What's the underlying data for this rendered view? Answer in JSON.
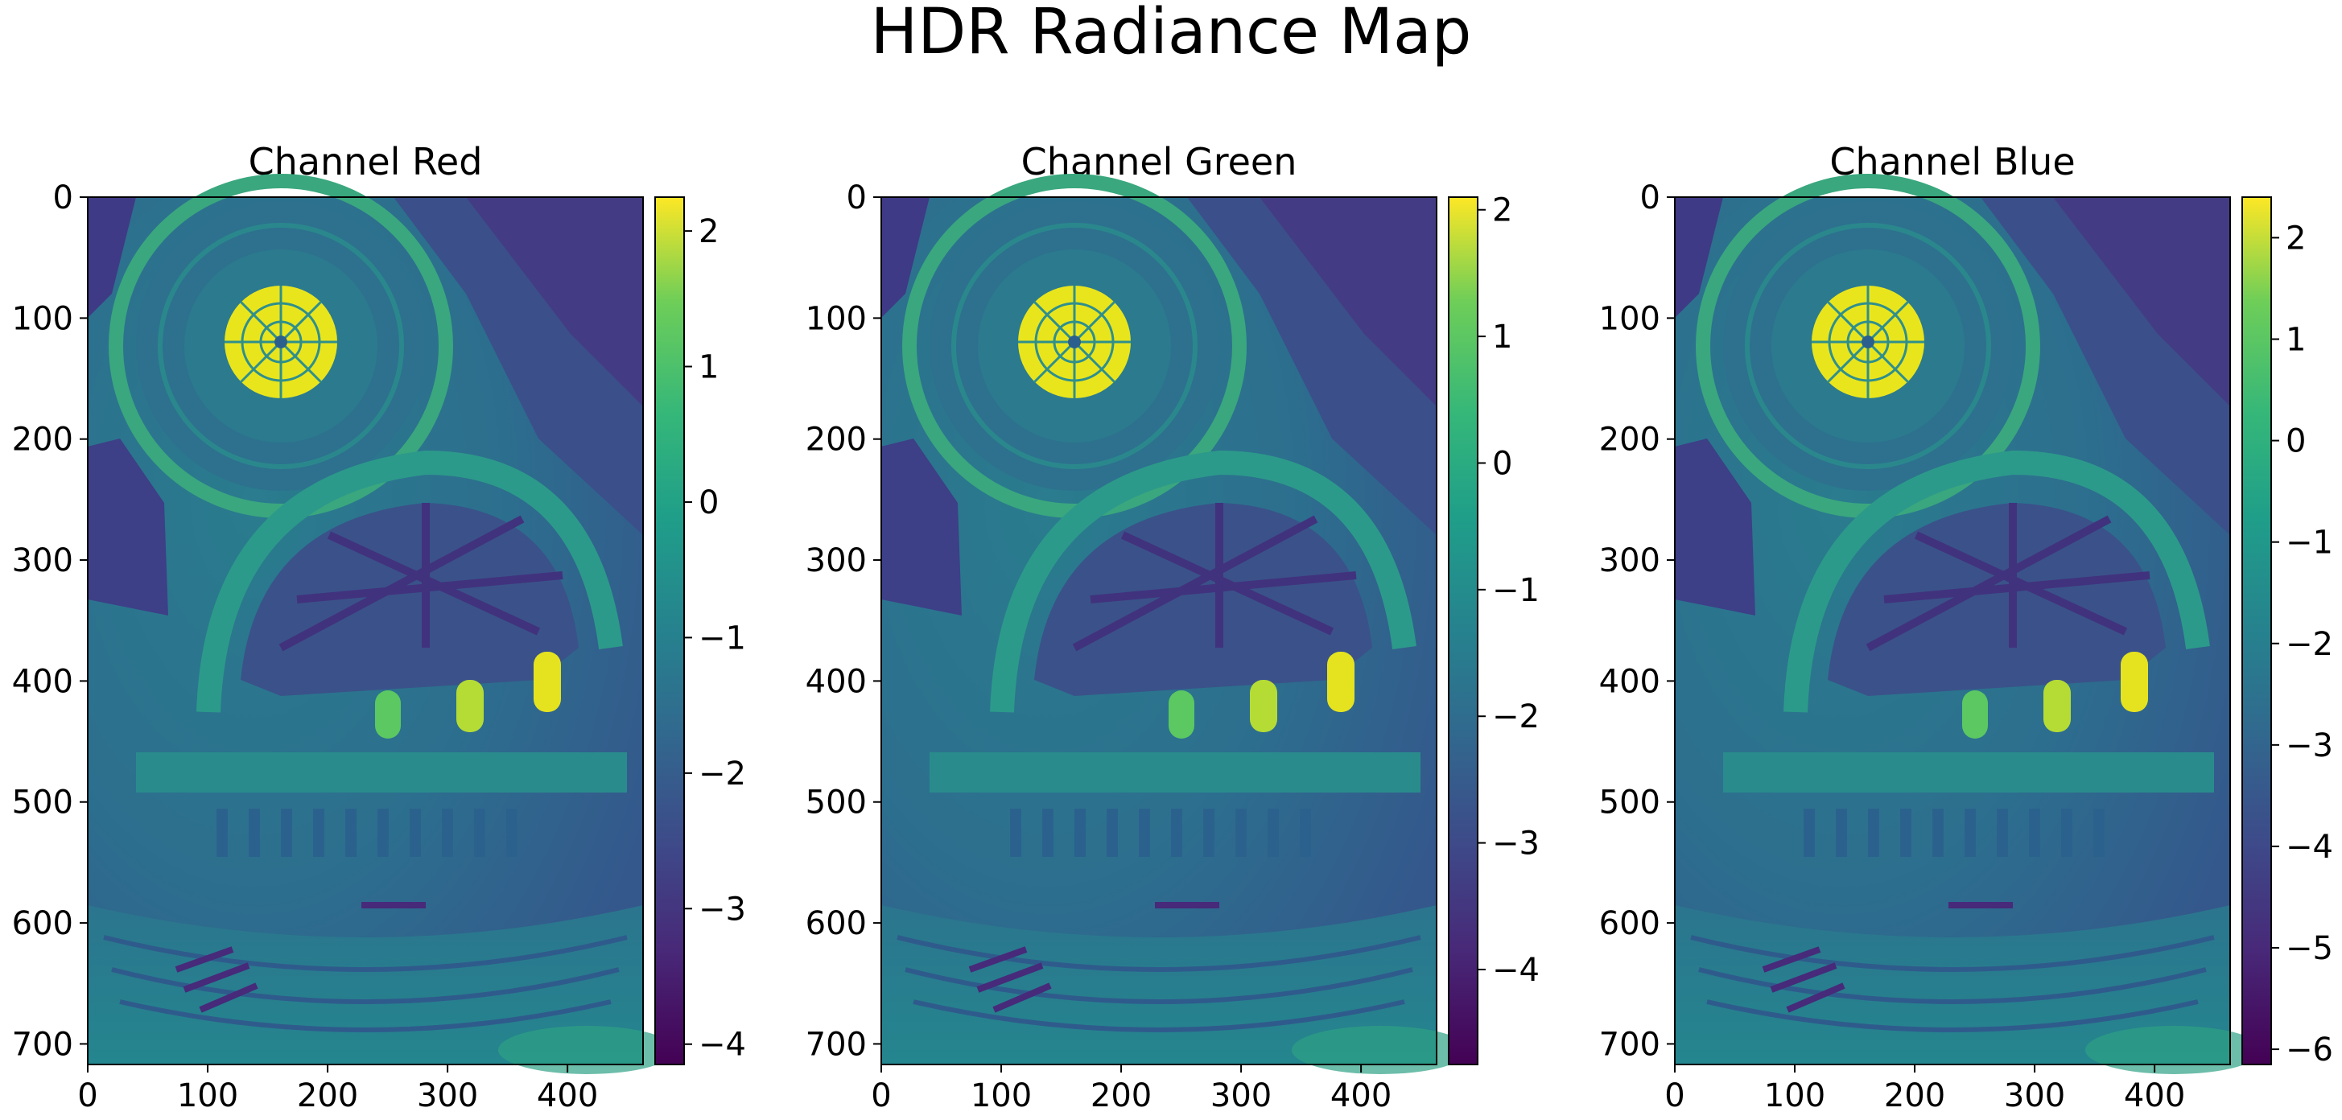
{
  "figure": {
    "title": "HDR Radiance Map"
  },
  "chart_data": [
    {
      "type": "heatmap",
      "title": "Channel Red",
      "xticks": [
        0,
        100,
        200,
        300,
        400
      ],
      "yticks": [
        0,
        100,
        200,
        300,
        400,
        500,
        600,
        700
      ],
      "xlim": [
        0,
        463
      ],
      "ylim": [
        717,
        0
      ],
      "colormap": "viridis",
      "colorbar": {
        "ticks": [
          2,
          1,
          0,
          -1,
          -2,
          -3,
          -4
        ],
        "range": [
          -4.15,
          2.25
        ]
      },
      "image_description_note": ""
    },
    {
      "type": "heatmap",
      "title": "Channel Green",
      "xticks": [
        0,
        100,
        200,
        300,
        400
      ],
      "yticks": [
        0,
        100,
        200,
        300,
        400,
        500,
        600,
        700
      ],
      "xlim": [
        0,
        463
      ],
      "ylim": [
        717,
        0
      ],
      "colormap": "viridis",
      "colorbar": {
        "ticks": [
          2,
          1,
          0,
          -1,
          -2,
          -3,
          -4
        ],
        "range": [
          -4.75,
          2.1
        ]
      }
    },
    {
      "type": "heatmap",
      "title": "Channel Blue",
      "xticks": [
        0,
        100,
        200,
        300,
        400
      ],
      "yticks": [
        0,
        100,
        200,
        300,
        400,
        500,
        600,
        700
      ],
      "xlim": [
        0,
        463
      ],
      "ylim": [
        717,
        0
      ],
      "colormap": "viridis",
      "colorbar": {
        "ticks": [
          2,
          1,
          0,
          -1,
          -2,
          -3,
          -4,
          -5,
          -6
        ],
        "range": [
          -6.15,
          2.4
        ]
      }
    }
  ]
}
